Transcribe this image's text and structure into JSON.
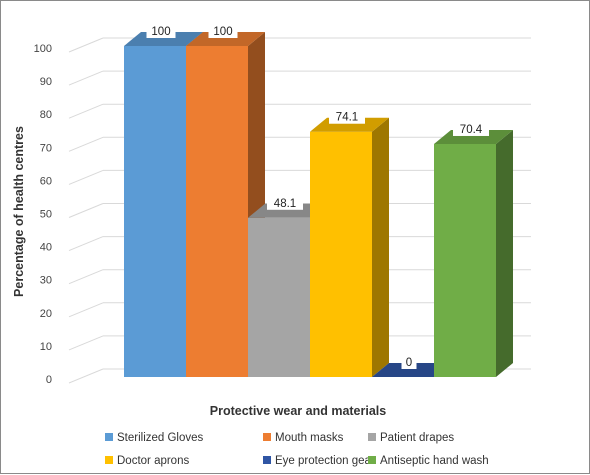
{
  "chart_data": {
    "type": "bar",
    "style": "3d-clustered-column",
    "categories": [
      "Sterilized Gloves",
      "Mouth masks",
      "Patient drapes",
      "Doctor aprons",
      "Eye protection gear",
      "Antiseptic hand wash"
    ],
    "values": [
      100,
      100,
      48.1,
      74.1,
      0,
      70.4
    ],
    "value_labels": [
      "100",
      "100",
      "48.1",
      "74.1",
      "0",
      "70.4"
    ],
    "colors": [
      "#5b9bd5",
      "#ed7d31",
      "#a5a5a5",
      "#ffc000",
      "#2f55a4",
      "#70ad47"
    ],
    "xlabel": "Protective wear and materials",
    "ylabel": "Percentage of health centres",
    "ylim": [
      0,
      100
    ],
    "yticks": [
      "0",
      "10",
      "20",
      "30",
      "40",
      "50",
      "60",
      "70",
      "80",
      "90",
      "100"
    ],
    "grid": true,
    "legend_position": "bottom"
  }
}
